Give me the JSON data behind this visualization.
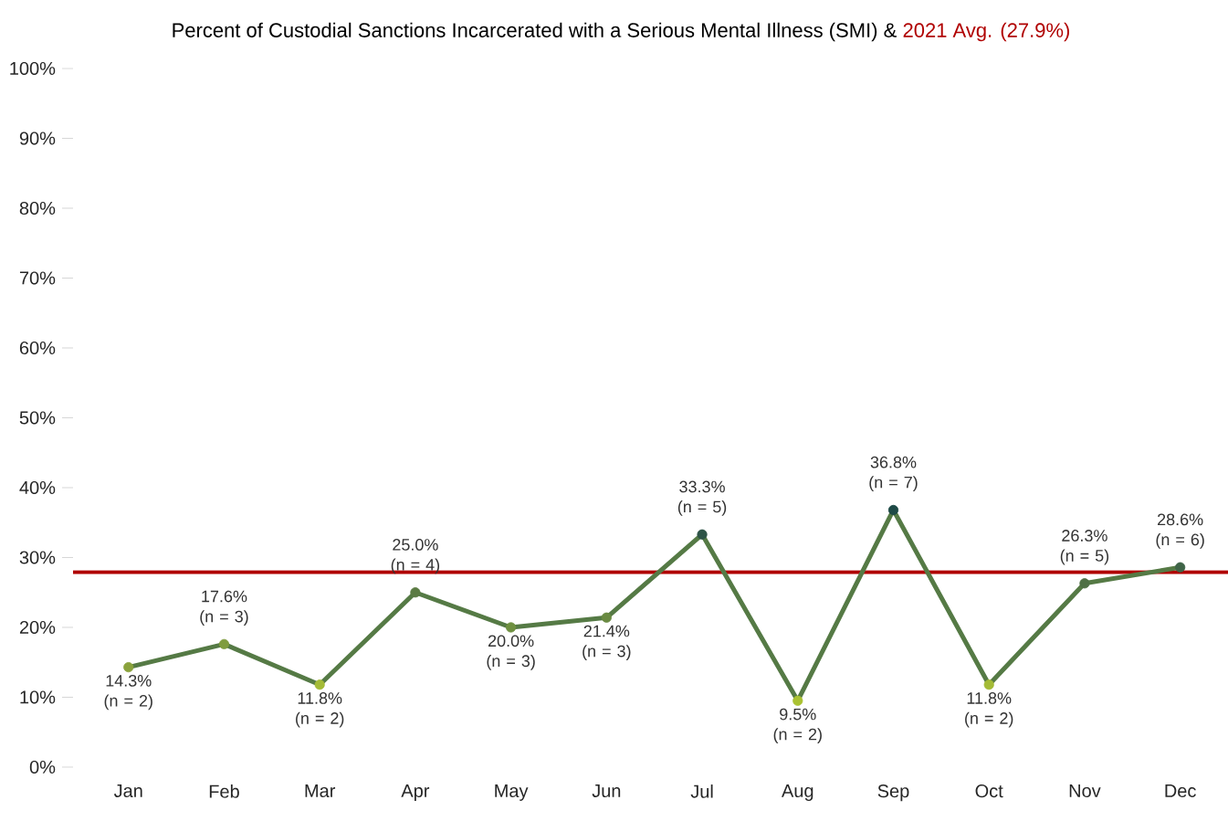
{
  "chart_data": {
    "type": "line",
    "title": "Percent of Custodial Sanctions Incarcerated with a Serious Mental Illness (SMI) &",
    "categories": [
      "Jan",
      "Feb",
      "Mar",
      "Apr",
      "May",
      "Jun",
      "Jul",
      "Aug",
      "Sep",
      "Oct",
      "Nov",
      "Dec"
    ],
    "values": [
      14.3,
      17.6,
      11.8,
      25.0,
      20.0,
      21.4,
      33.3,
      9.5,
      36.8,
      11.8,
      26.3,
      28.6
    ],
    "color": "#557a45",
    "colors": [
      "#8aa23c",
      "#7f9c3e",
      "#a4bb36",
      "#5b7b44",
      "#6f9040",
      "#6a8a42",
      "#2e5447",
      "#aac232",
      "#1e4a46",
      "#a4bb36",
      "#4f7045",
      "#3f6447"
    ],
    "value_labels": [
      "14.3% (n = 2)",
      "17.6% (n = 3)",
      "11.8% (n = 2)",
      "25.0% (n = 4)",
      "20.0% (n = 3)",
      "21.4% (n = 3)",
      "33.3% (n = 5)",
      "9.5% (n = 2)",
      "36.8% (n = 7)",
      "11.8% (n = 2)",
      "26.3% (n = 5)",
      "28.6% (n = 6)"
    ],
    "marker": "circle",
    "ylim": [
      0,
      100
    ],
    "yticks": [
      {
        "value": 0,
        "label": "0%"
      },
      {
        "value": 10,
        "label": "10%"
      },
      {
        "value": 20,
        "label": "20%"
      },
      {
        "value": 30,
        "label": "30%"
      },
      {
        "value": 40,
        "label": "40%"
      },
      {
        "value": 50,
        "label": "50%"
      },
      {
        "value": 60,
        "label": "60%"
      },
      {
        "value": 70,
        "label": "70%"
      },
      {
        "value": 80,
        "label": "80%"
      },
      {
        "value": 90,
        "label": "90%"
      },
      {
        "value": 100,
        "label": "100%"
      }
    ],
    "ref_lines": [
      {
        "axis": "y",
        "value": 27.9,
        "label": "2021 Avg. (27.9%)",
        "color": "#b00000"
      }
    ],
    "grid": false
  }
}
